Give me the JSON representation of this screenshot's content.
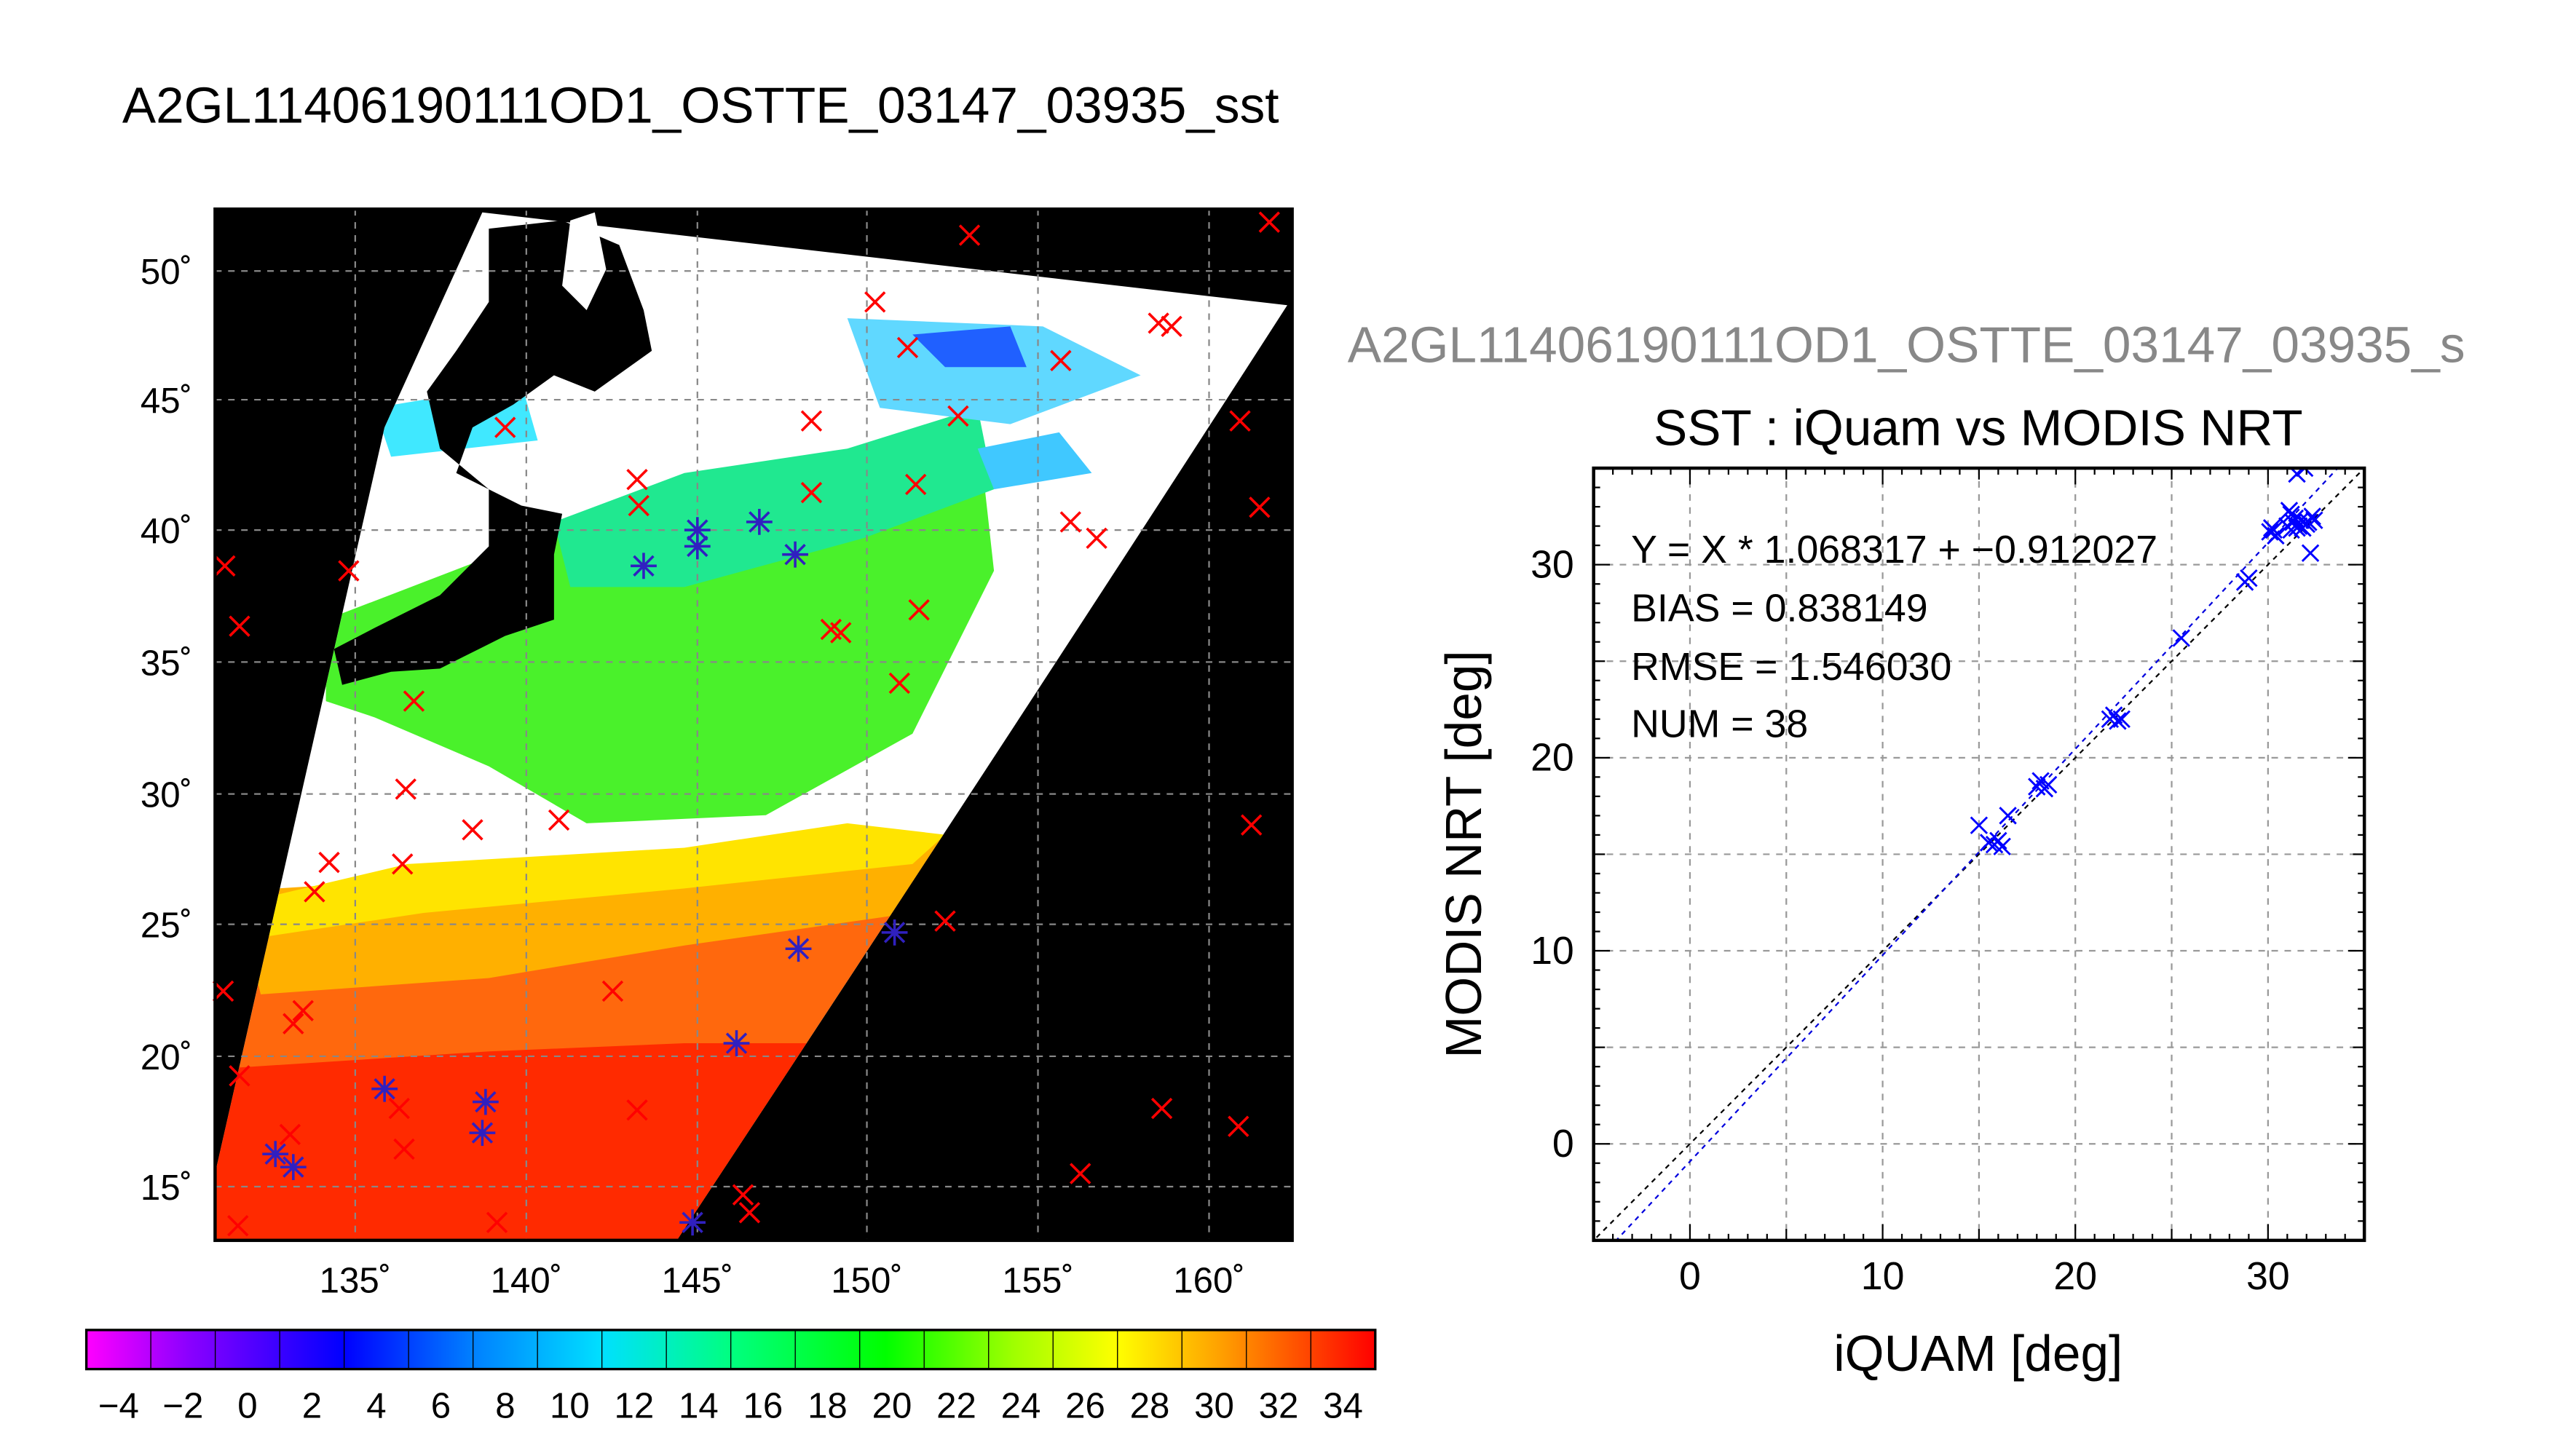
{
  "main_title": "A2GL11406190111OD1_OSTTE_03147_03935_sst",
  "map": {
    "lat_ticks": [
      "50˚",
      "45˚",
      "40˚",
      "35˚",
      "30˚",
      "25˚",
      "20˚",
      "15˚"
    ],
    "lon_ticks": [
      "135˚",
      "140˚",
      "145˚",
      "150˚",
      "155˚",
      "160˚"
    ],
    "colorbar_ticks": [
      "−4",
      "−2",
      "0",
      "2",
      "4",
      "6",
      "8",
      "10",
      "12",
      "14",
      "16",
      "18",
      "20",
      "22",
      "24",
      "26",
      "28",
      "30",
      "32",
      "34"
    ]
  },
  "chart_data": {
    "type": "scatter",
    "header": "A2GL11406190111OD1_OSTTE_03147_03935_s",
    "title": "SST : iQuam vs MODIS NRT",
    "xlabel": "iQUAM [deg]",
    "ylabel": "MODIS NRT [deg]",
    "xlim": [
      -5,
      35
    ],
    "ylim": [
      -5,
      35
    ],
    "xticks": [
      "0",
      "10",
      "20",
      "30"
    ],
    "yticks": [
      "0",
      "10",
      "20",
      "30"
    ],
    "grid": true,
    "stats": {
      "fit": "Y = X * 1.068317 + −0.912027",
      "bias": "BIAS = 0.838149",
      "rmse": "RMSE = 1.546030",
      "num": "NUM = 38"
    },
    "fit_line": {
      "slope": 1.068317,
      "intercept": -0.912027
    },
    "identity_line": {
      "slope": 1,
      "intercept": 0
    },
    "points": [
      [
        15.0,
        16.5
      ],
      [
        15.5,
        15.6
      ],
      [
        15.8,
        15.5
      ],
      [
        16.0,
        15.7
      ],
      [
        16.2,
        15.4
      ],
      [
        16.5,
        17.0
      ],
      [
        18.0,
        18.5
      ],
      [
        18.2,
        18.8
      ],
      [
        18.4,
        18.4
      ],
      [
        18.6,
        18.6
      ],
      [
        21.8,
        22.0
      ],
      [
        22.0,
        22.2
      ],
      [
        22.2,
        21.9
      ],
      [
        22.4,
        22.0
      ],
      [
        25.5,
        26.2
      ],
      [
        28.8,
        29.1
      ],
      [
        29.0,
        29.3
      ],
      [
        30.1,
        31.7
      ],
      [
        30.2,
        31.9
      ],
      [
        30.4,
        31.5
      ],
      [
        31.0,
        32.0
      ],
      [
        31.1,
        32.8
      ],
      [
        31.2,
        31.8
      ],
      [
        31.3,
        32.2
      ],
      [
        31.4,
        32.4
      ],
      [
        31.5,
        31.9
      ],
      [
        31.5,
        34.7
      ],
      [
        31.6,
        32.0
      ],
      [
        31.7,
        32.3
      ],
      [
        31.8,
        31.9
      ],
      [
        32.0,
        32.1
      ],
      [
        32.2,
        30.6
      ],
      [
        32.3,
        32.5
      ],
      [
        31.9,
        35.0
      ],
      [
        32.1,
        32.2
      ],
      [
        30.3,
        31.8
      ],
      [
        31.2,
        32.6
      ],
      [
        32.4,
        32.3
      ]
    ]
  }
}
